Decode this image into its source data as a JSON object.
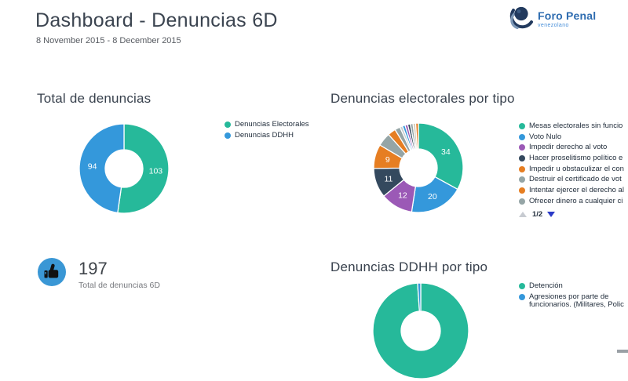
{
  "header": {
    "title": "Dashboard - Denuncias 6D",
    "subtitle": "8 November 2015 - 8 December 2015"
  },
  "logo": {
    "brand": "Foro Penal",
    "tagline": "venezolano"
  },
  "kpi": {
    "value": "197",
    "label": "Total de denuncias 6D",
    "icon": "thumbs-up-icon",
    "circle_color": "#3a97d5"
  },
  "palette": {
    "green": "#26B99A",
    "blue": "#3498DB",
    "purple": "#9B59B6",
    "navy": "#34495E",
    "orange": "#E67E22",
    "gray": "#95A5A6",
    "silver": "#C8CDD0",
    "tan": "#D9CDBA"
  },
  "chart_data": [
    {
      "type": "pie",
      "subtype": "donut",
      "title": "Total de denuncias",
      "legend": [
        "Denuncias Electorales",
        "Denuncias DDHH"
      ],
      "legend_colors": [
        "#26B99A",
        "#3498DB"
      ],
      "values": [
        103,
        94
      ],
      "colors": [
        "#26B99A",
        "#3498DB"
      ],
      "value_labels": true,
      "label_min": 0,
      "legend_position": "right",
      "start_angle_deg": 0
    },
    {
      "type": "pie",
      "subtype": "donut",
      "title": "Denuncias electorales por tipo",
      "legend": [
        "Mesas electorales sin funcio",
        "Voto Nulo",
        "Impedir derecho al voto",
        "Hacer proselitismo político e",
        "Impedir u obstaculizar el con",
        "Destruir el certificado de vot",
        "Intentar ejercer el derecho al",
        "Ofrecer dinero a cualquier ci"
      ],
      "legend_colors": [
        "#26B99A",
        "#3498DB",
        "#9B59B6",
        "#34495E",
        "#E67E22",
        "#95A5A6",
        "#E67E22",
        "#95A5A6"
      ],
      "values": [
        34,
        20,
        12,
        11,
        9,
        5,
        3,
        2,
        1,
        1,
        1,
        1,
        1,
        1,
        1
      ],
      "colors": [
        "#26B99A",
        "#3498DB",
        "#9B59B6",
        "#34495E",
        "#E67E22",
        "#95A5A6",
        "#E67E22",
        "#95A5A6",
        "#C8CDD0",
        "#3498DB",
        "#9B59B6",
        "#34495E",
        "#95A5A6",
        "#D9CDBA",
        "#E67E22"
      ],
      "value_labels": true,
      "label_min": 9,
      "legend_position": "right",
      "legend_pagination": "1/2",
      "start_angle_deg": 0
    },
    {
      "type": "pie",
      "subtype": "donut",
      "title": "Denuncias DDHH por tipo",
      "legend": [
        "Detención",
        "Agresiones por parte de funcionarios. (Militares, Polic"
      ],
      "legend_colors": [
        "#26B99A",
        "#3498DB"
      ],
      "values": [
        93,
        1
      ],
      "colors": [
        "#26B99A",
        "#3498DB"
      ],
      "value_labels": false,
      "label_min": 0,
      "legend_position": "right",
      "start_angle_deg": 0
    }
  ]
}
